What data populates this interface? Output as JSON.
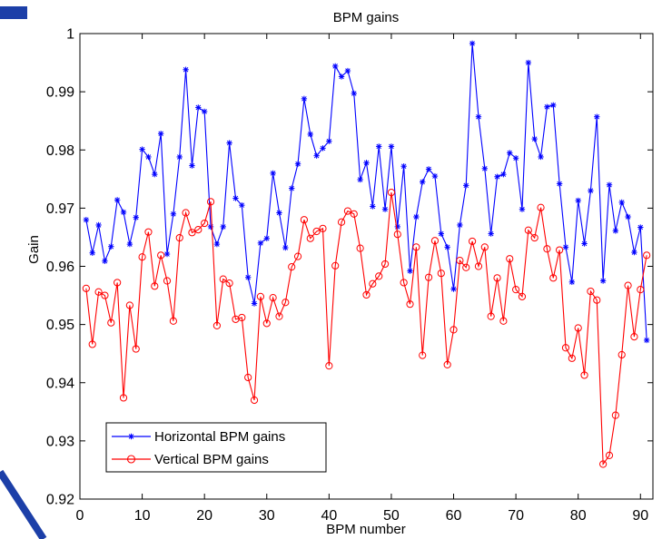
{
  "chart_data": {
    "type": "line",
    "title": "BPM gains",
    "xlabel": "BPM number",
    "ylabel": "Gain",
    "xlim": [
      0,
      92
    ],
    "ylim": [
      0.92,
      1.0
    ],
    "xticks": [
      0,
      10,
      20,
      30,
      40,
      50,
      60,
      70,
      80,
      90
    ],
    "yticks": [
      0.92,
      0.93,
      0.94,
      0.95,
      0.96,
      0.97,
      0.98,
      0.99,
      1
    ],
    "ytick_labels": [
      "0.92",
      "0.93",
      "0.94",
      "0.95",
      "0.96",
      "0.97",
      "0.98",
      "0.99",
      "1"
    ],
    "grid": false,
    "legend_position": "bottom-left",
    "series": [
      {
        "name": "Horizontal BPM gains",
        "color": "#0000ff",
        "marker": "star",
        "x": [
          1,
          2,
          3,
          4,
          5,
          6,
          7,
          8,
          9,
          10,
          11,
          12,
          13,
          14,
          15,
          16,
          17,
          18,
          19,
          20,
          21,
          22,
          23,
          24,
          25,
          26,
          27,
          28,
          29,
          30,
          31,
          32,
          33,
          34,
          35,
          36,
          37,
          38,
          39,
          40,
          41,
          42,
          43,
          44,
          45,
          46,
          47,
          48,
          49,
          50,
          51,
          52,
          53,
          54,
          55,
          56,
          57,
          58,
          59,
          60,
          61,
          62,
          63,
          64,
          65,
          66,
          67,
          68,
          69,
          70,
          71,
          72,
          73,
          74,
          75,
          76,
          77,
          78,
          79,
          80,
          81,
          82,
          83,
          84,
          85,
          86,
          87,
          88,
          89,
          90,
          91
        ],
        "y": [
          0.968,
          0.9623,
          0.9671,
          0.9609,
          0.9634,
          0.9714,
          0.9693,
          0.9638,
          0.9684,
          0.9801,
          0.9788,
          0.9758,
          0.9828,
          0.9621,
          0.969,
          0.9788,
          0.9938,
          0.9773,
          0.9873,
          0.9866,
          0.9668,
          0.9638,
          0.9668,
          0.9812,
          0.9717,
          0.9705,
          0.9581,
          0.9536,
          0.964,
          0.9648,
          0.976,
          0.9692,
          0.9632,
          0.9734,
          0.9776,
          0.9888,
          0.9827,
          0.979,
          0.9803,
          0.9815,
          0.9944,
          0.9926,
          0.9936,
          0.9897,
          0.9749,
          0.9778,
          0.9703,
          0.9806,
          0.9698,
          0.9806,
          0.9668,
          0.9772,
          0.9592,
          0.9685,
          0.9745,
          0.9767,
          0.9755,
          0.9656,
          0.9633,
          0.9561,
          0.9671,
          0.9739,
          0.9983,
          0.9857,
          0.9768,
          0.9656,
          0.9754,
          0.9758,
          0.9795,
          0.9786,
          0.9698,
          0.995,
          0.9819,
          0.9788,
          0.9874,
          0.9877,
          0.9742,
          0.9633,
          0.9573,
          0.9713,
          0.9639,
          0.973,
          0.9857,
          0.9575,
          0.974,
          0.9661,
          0.971,
          0.9685,
          0.9624,
          0.9667,
          0.9473
        ]
      },
      {
        "name": "Vertical BPM gains",
        "color": "#ff0000",
        "marker": "circle",
        "x": [
          1,
          2,
          3,
          4,
          5,
          6,
          7,
          8,
          9,
          10,
          11,
          12,
          13,
          14,
          15,
          16,
          17,
          18,
          19,
          20,
          21,
          22,
          23,
          24,
          25,
          26,
          27,
          28,
          29,
          30,
          31,
          32,
          33,
          34,
          35,
          36,
          37,
          38,
          39,
          40,
          41,
          42,
          43,
          44,
          45,
          46,
          47,
          48,
          49,
          50,
          51,
          52,
          53,
          54,
          55,
          56,
          57,
          58,
          59,
          60,
          61,
          62,
          63,
          64,
          65,
          66,
          67,
          68,
          69,
          70,
          71,
          72,
          73,
          74,
          75,
          76,
          77,
          78,
          79,
          80,
          81,
          82,
          83,
          84,
          85,
          86,
          87,
          88,
          89,
          90,
          91
        ],
        "y": [
          0.9562,
          0.9466,
          0.9556,
          0.955,
          0.9503,
          0.9572,
          0.9374,
          0.9533,
          0.9458,
          0.9616,
          0.9659,
          0.9566,
          0.9619,
          0.9575,
          0.9506,
          0.9649,
          0.9692,
          0.9658,
          0.9663,
          0.9674,
          0.9711,
          0.9498,
          0.9578,
          0.9571,
          0.9509,
          0.9512,
          0.9409,
          0.937,
          0.9548,
          0.9502,
          0.9546,
          0.9514,
          0.9538,
          0.9599,
          0.9617,
          0.968,
          0.9648,
          0.966,
          0.9665,
          0.9429,
          0.9601,
          0.9676,
          0.9695,
          0.969,
          0.9631,
          0.9551,
          0.957,
          0.9583,
          0.9604,
          0.9727,
          0.9655,
          0.9572,
          0.9535,
          0.9633,
          0.9447,
          0.9581,
          0.9644,
          0.9588,
          0.9431,
          0.9491,
          0.961,
          0.9598,
          0.9643,
          0.96,
          0.9633,
          0.9514,
          0.958,
          0.9506,
          0.9613,
          0.956,
          0.9548,
          0.9662,
          0.9649,
          0.9701,
          0.963,
          0.958,
          0.9628,
          0.946,
          0.9442,
          0.9494,
          0.9413,
          0.9557,
          0.9542,
          0.926,
          0.9275,
          0.9344,
          0.9448,
          0.9567,
          0.9479,
          0.956,
          0.9619
        ]
      }
    ]
  }
}
